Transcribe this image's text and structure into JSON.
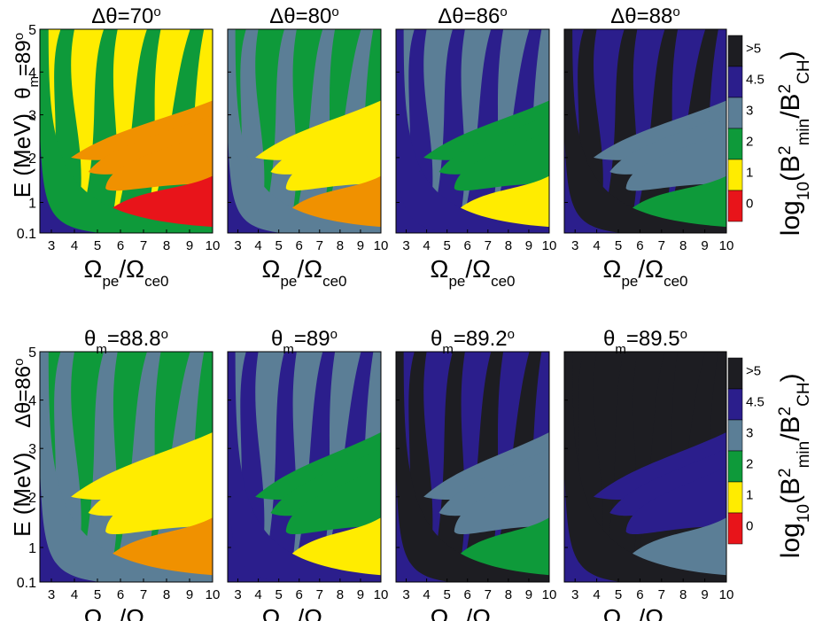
{
  "figure": {
    "colorbar": {
      "levels": [
        ">5",
        "4.5",
        "3",
        "2",
        "1",
        "0"
      ],
      "label_prefix": "log",
      "label_sub10": "10",
      "label_paren_open": "(B",
      "label_sup2": "2",
      "label_min": "min",
      "label_slash": "/B",
      "label_ch": "CH",
      "label_close": ")"
    },
    "band_colors": {
      "red": "#e8141a",
      "orange": "#f09100",
      "yellow": "#ffec00",
      "green": "#0e9a3a",
      "slate": "#5b7e96",
      "navy": "#2b1e8c",
      "dark": "#1d1d22"
    },
    "row_labels": {
      "row1": {
        "sym": "θ",
        "sub": "m",
        "eq": "=89",
        "deg": "o"
      },
      "row2": {
        "sym": "Δθ",
        "eq": "=86",
        "deg": "o"
      }
    },
    "ylabel": "E (MeV)",
    "xlabel": {
      "num": "Ω",
      "num_sub": "pe",
      "slash": "/",
      "den": "Ω",
      "den_sub": "ce0"
    }
  },
  "chart_data": [
    {
      "type": "heatmap",
      "title": "Δθ=70°",
      "title_sym": "Δθ",
      "title_val": "=70",
      "deg": "o",
      "x_ticks": [
        "3",
        "4",
        "5",
        "6",
        "7",
        "8",
        "9",
        "10"
      ],
      "y_ticks": [
        "0.1",
        "1",
        "2",
        "3",
        "4",
        "5"
      ],
      "xlim": [
        2.5,
        10
      ],
      "ylim": [
        0.1,
        5
      ],
      "level": 1
    },
    {
      "type": "heatmap",
      "title": "Δθ=80°",
      "title_sym": "Δθ",
      "title_val": "=80",
      "deg": "o",
      "x_ticks": [
        "3",
        "4",
        "5",
        "6",
        "7",
        "8",
        "9",
        "10"
      ],
      "y_ticks": [
        "0.1",
        "1",
        "2",
        "3",
        "4",
        "5"
      ],
      "xlim": [
        2.5,
        10
      ],
      "ylim": [
        0.1,
        5
      ],
      "level": 2
    },
    {
      "type": "heatmap",
      "title": "Δθ=86°",
      "title_sym": "Δθ",
      "title_val": "=86",
      "deg": "o",
      "x_ticks": [
        "3",
        "4",
        "5",
        "6",
        "7",
        "8",
        "9",
        "10"
      ],
      "y_ticks": [
        "0.1",
        "1",
        "2",
        "3",
        "4",
        "5"
      ],
      "xlim": [
        2.5,
        10
      ],
      "ylim": [
        0.1,
        5
      ],
      "level": 3
    },
    {
      "type": "heatmap",
      "title": "Δθ=88°",
      "title_sym": "Δθ",
      "title_val": "=88",
      "deg": "o",
      "x_ticks": [
        "3",
        "4",
        "5",
        "6",
        "7",
        "8",
        "9",
        "10"
      ],
      "y_ticks": [
        "0.1",
        "1",
        "2",
        "3",
        "4",
        "5"
      ],
      "xlim": [
        2.5,
        10
      ],
      "ylim": [
        0.1,
        5
      ],
      "level": 4
    },
    {
      "type": "heatmap",
      "title": "θm=88.8°",
      "title_sym": "θ",
      "title_sub": "m",
      "title_val": "=88.8",
      "deg": "o",
      "x_ticks": [
        "3",
        "4",
        "5",
        "6",
        "7",
        "8",
        "9",
        "10"
      ],
      "y_ticks": [
        "0.1",
        "1",
        "2",
        "3",
        "4",
        "5"
      ],
      "xlim": [
        2.5,
        10
      ],
      "ylim": [
        0.1,
        5
      ],
      "level": 2
    },
    {
      "type": "heatmap",
      "title": "θm=89°",
      "title_sym": "θ",
      "title_sub": "m",
      "title_val": "=89",
      "deg": "o",
      "x_ticks": [
        "3",
        "4",
        "5",
        "6",
        "7",
        "8",
        "9",
        "10"
      ],
      "y_ticks": [
        "0.1",
        "1",
        "2",
        "3",
        "4",
        "5"
      ],
      "xlim": [
        2.5,
        10
      ],
      "ylim": [
        0.1,
        5
      ],
      "level": 3
    },
    {
      "type": "heatmap",
      "title": "θm=89.2°",
      "title_sym": "θ",
      "title_sub": "m",
      "title_val": "=89.2",
      "deg": "o",
      "x_ticks": [
        "3",
        "4",
        "5",
        "6",
        "7",
        "8",
        "9",
        "10"
      ],
      "y_ticks": [
        "0.1",
        "1",
        "2",
        "3",
        "4",
        "5"
      ],
      "xlim": [
        2.5,
        10
      ],
      "ylim": [
        0.1,
        5
      ],
      "level": 4
    },
    {
      "type": "heatmap",
      "title": "θm=89.5°",
      "title_sym": "θ",
      "title_sub": "m",
      "title_val": "=89.5",
      "deg": "o",
      "x_ticks": [
        "3",
        "4",
        "5",
        "6",
        "7",
        "8",
        "9",
        "10"
      ],
      "y_ticks": [
        "0.1",
        "1",
        "2",
        "3",
        "4",
        "5"
      ],
      "xlim": [
        2.5,
        10
      ],
      "ylim": [
        0.1,
        5
      ],
      "level": 5
    }
  ]
}
